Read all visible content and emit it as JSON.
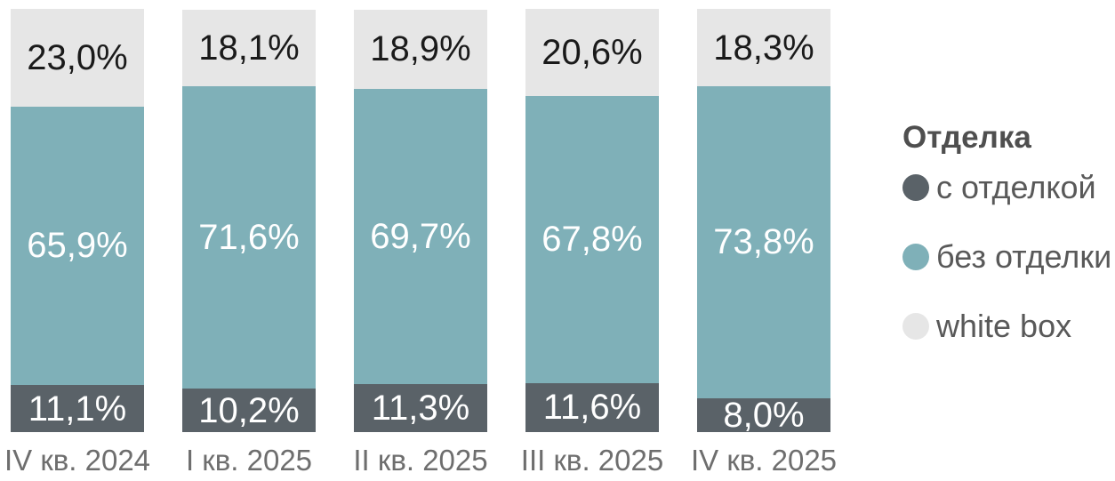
{
  "chart_data": {
    "type": "bar",
    "variant": "stacked-100-percent",
    "orientation": "vertical",
    "unit": "%",
    "grid": false,
    "ylim": [
      0,
      100
    ],
    "categories": [
      "IV кв. 2024",
      "I кв. 2025",
      "II кв. 2025",
      "III кв. 2025",
      "IV кв. 2025"
    ],
    "series": [
      {
        "name": "с отделкой",
        "color": "#5a6268",
        "label_color": "#ffffff",
        "values": [
          11.1,
          10.2,
          11.3,
          11.6,
          8.0
        ],
        "labels": [
          "11,1%",
          "10,2%",
          "11,3%",
          "11,6%",
          "8,0%"
        ]
      },
      {
        "name": "без отделки",
        "color": "#7fb0b8",
        "label_color": "#ffffff",
        "values": [
          65.9,
          71.6,
          69.7,
          67.8,
          73.8
        ],
        "labels": [
          "65,9%",
          "71,6%",
          "69,7%",
          "67,8%",
          "73,8%"
        ]
      },
      {
        "name": "white box",
        "color": "#e6e6e6",
        "label_color": "#1a1a1a",
        "values": [
          23.0,
          18.1,
          18.9,
          20.6,
          18.3
        ],
        "labels": [
          "23,0%",
          "18,1%",
          "18,9%",
          "20,6%",
          "18,3%"
        ]
      }
    ],
    "legend": {
      "title": "Отделка",
      "position": "right",
      "entries": [
        "с отделкой",
        "без отделки",
        "white box"
      ]
    },
    "axis_label_color": "#6e6e6e"
  }
}
